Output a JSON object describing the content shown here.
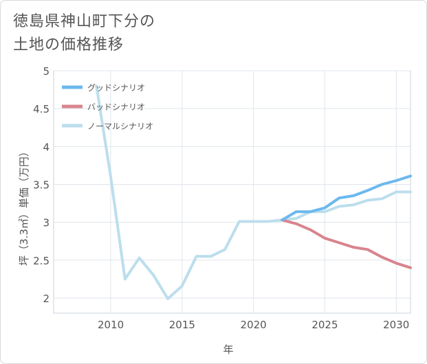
{
  "chart_data": {
    "type": "line",
    "title": "徳島県神山町下分の\n土地の価格推移",
    "xlabel": "年",
    "ylabel": "坪（3.3㎡）単価（万円）",
    "xlim": [
      2006,
      2031
    ],
    "ylim": [
      1.8,
      5
    ],
    "x_ticks": [
      "2010",
      "2015",
      "2020",
      "2025",
      "2030"
    ],
    "y_ticks": [
      "2",
      "2.5",
      "3",
      "3.5",
      "4",
      "4.5",
      "5"
    ],
    "grid": true,
    "legend_position": "top-left",
    "series": [
      {
        "name": "グッドシナリオ",
        "color": "#6cb8ee",
        "x": [
          2022,
          2023,
          2024,
          2025,
          2026,
          2027,
          2028,
          2029,
          2030,
          2031
        ],
        "y": [
          3.03,
          3.14,
          3.14,
          3.19,
          3.32,
          3.35,
          3.42,
          3.5,
          3.55,
          3.61
        ]
      },
      {
        "name": "バッドシナリオ",
        "color": "#d9848d",
        "x": [
          2022,
          2023,
          2024,
          2025,
          2026,
          2027,
          2028,
          2029,
          2030,
          2031
        ],
        "y": [
          3.03,
          2.98,
          2.9,
          2.79,
          2.73,
          2.67,
          2.64,
          2.54,
          2.46,
          2.4
        ]
      },
      {
        "name": "ノーマルシナリオ",
        "color": "#bcdeed",
        "x": [
          2009,
          2010,
          2011,
          2012,
          2013,
          2014,
          2015,
          2016,
          2017,
          2018,
          2019,
          2020,
          2021,
          2022,
          2023,
          2024,
          2025,
          2026,
          2027,
          2028,
          2029,
          2030,
          2031
        ],
        "y": [
          4.8,
          3.6,
          2.25,
          2.53,
          2.3,
          1.99,
          2.16,
          2.55,
          2.55,
          2.64,
          3.01,
          3.01,
          3.01,
          3.03,
          3.05,
          3.14,
          3.14,
          3.21,
          3.23,
          3.29,
          3.31,
          3.4,
          3.4
        ]
      }
    ]
  }
}
